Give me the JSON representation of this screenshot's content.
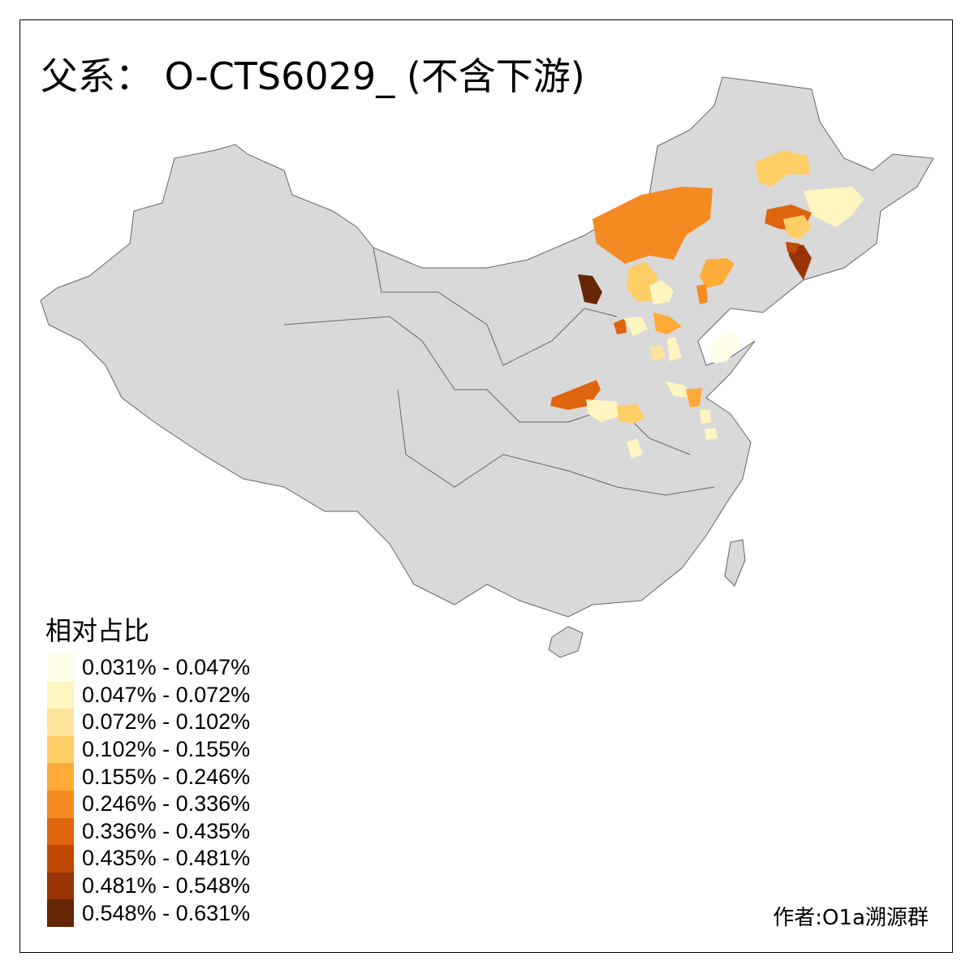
{
  "title": "父系： O-CTS6029_ (不含下游)",
  "legend": {
    "title": "相对占比",
    "items": [
      {
        "label": "0.031% - 0.047%",
        "color": "#FFFEE6"
      },
      {
        "label": "0.047% - 0.072%",
        "color": "#FFF5C0"
      },
      {
        "label": "0.072% - 0.102%",
        "color": "#FEE39A"
      },
      {
        "label": "0.102% - 0.155%",
        "color": "#FECE66"
      },
      {
        "label": "0.155% - 0.246%",
        "color": "#FEAB3A"
      },
      {
        "label": "0.246% - 0.336%",
        "color": "#F48B22"
      },
      {
        "label": "0.336% - 0.435%",
        "color": "#E0650F"
      },
      {
        "label": "0.435% - 0.481%",
        "color": "#C04A04"
      },
      {
        "label": "0.481% - 0.548%",
        "color": "#973406"
      },
      {
        "label": "0.548% - 0.631%",
        "color": "#662506"
      }
    ]
  },
  "map": {
    "base_color": "#D9D9D9",
    "border_color": "#666666",
    "no_data_regions": "rest of China"
  },
  "credit": "作者:O1a溯源群"
}
